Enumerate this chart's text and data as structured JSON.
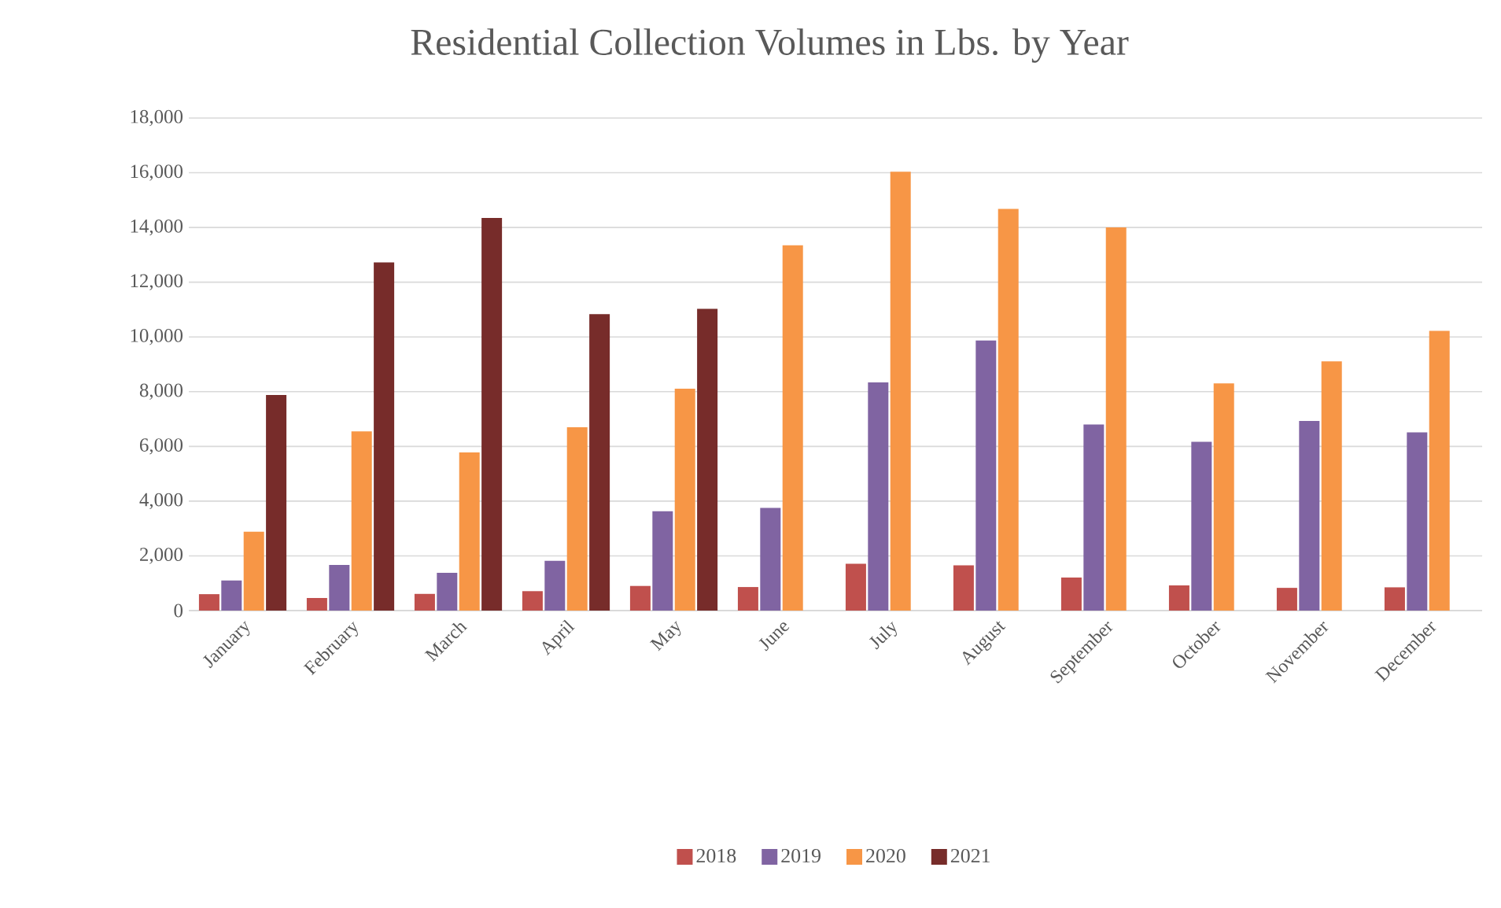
{
  "chart_data": {
    "type": "bar",
    "title": "Residential Collection Volumes in Lbs. by Year",
    "categories": [
      "January",
      "February",
      "March",
      "April",
      "May",
      "June",
      "July",
      "August",
      "September",
      "October",
      "November",
      "December"
    ],
    "series": [
      {
        "name": "2018",
        "color": "#c0504d",
        "values": [
          600,
          460,
          610,
          710,
          900,
          860,
          1710,
          1650,
          1210,
          920,
          830,
          850
        ]
      },
      {
        "name": "2019",
        "color": "#8064a2",
        "values": [
          1100,
          1670,
          1380,
          1820,
          3630,
          3750,
          8340,
          9870,
          6800,
          6170,
          6930,
          6510
        ]
      },
      {
        "name": "2020",
        "color": "#f79646",
        "values": [
          2880,
          6550,
          5780,
          6700,
          8110,
          13350,
          16040,
          14680,
          14000,
          8300,
          9110,
          10220
        ]
      },
      {
        "name": "2021",
        "color": "#772c2a",
        "values": [
          7880,
          12720,
          14350,
          10830,
          11030,
          null,
          null,
          null,
          null,
          null,
          null,
          null
        ]
      }
    ],
    "ylim": [
      0,
      18000
    ],
    "yticks": [
      {
        "value": 0,
        "label": "0"
      },
      {
        "value": 2000,
        "label": "2,000"
      },
      {
        "value": 4000,
        "label": "4,000"
      },
      {
        "value": 6000,
        "label": "6,000"
      },
      {
        "value": 8000,
        "label": "8,000"
      },
      {
        "value": 10000,
        "label": "10,000"
      },
      {
        "value": 12000,
        "label": "12,000"
      },
      {
        "value": 14000,
        "label": "14,000"
      },
      {
        "value": 16000,
        "label": "16,000"
      },
      {
        "value": 18000,
        "label": "18,000"
      }
    ],
    "grid": "y",
    "legend": "bottom"
  }
}
